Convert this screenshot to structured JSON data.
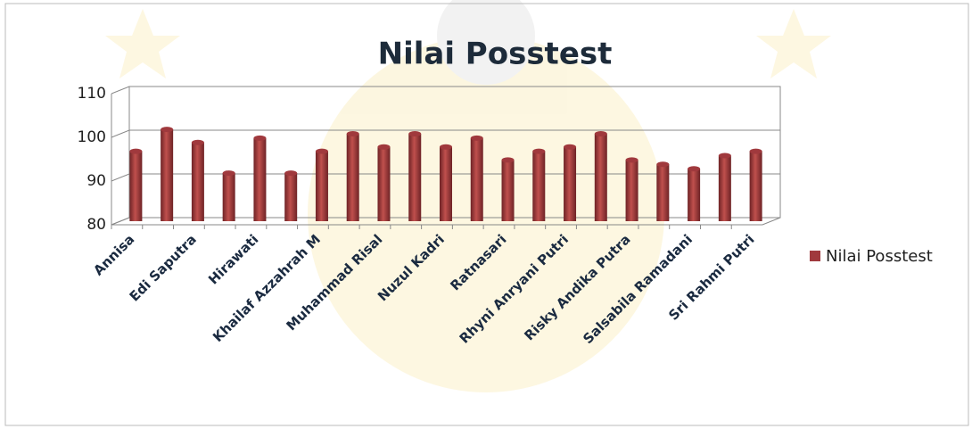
{
  "chart_data": {
    "type": "bar3d",
    "title": "Nilai Posstest",
    "categories": [
      "Annisa",
      null,
      "Edi Saputra",
      null,
      "Hirawati",
      null,
      "Khailaf Azzahrah M",
      null,
      "Muhammad Risal",
      null,
      "Nuzul Kadri",
      null,
      "Ratnasari",
      null,
      "Rhyni Anryani Putri",
      null,
      "Risky Andika Putra",
      null,
      "Salsabila Ramadani",
      null,
      "Sri Rahmi Putri"
    ],
    "series": [
      {
        "name": "Nilai Posstest",
        "color": "#a0393d",
        "values": [
          96,
          101,
          98,
          91,
          99,
          91,
          96,
          100,
          97,
          100,
          97,
          99,
          94,
          96,
          97,
          100,
          94,
          93,
          92,
          95,
          96
        ]
      }
    ],
    "ylim": [
      80,
      110
    ],
    "yticks": [
      80,
      90,
      100,
      110
    ],
    "grid": true,
    "legend": "right"
  }
}
